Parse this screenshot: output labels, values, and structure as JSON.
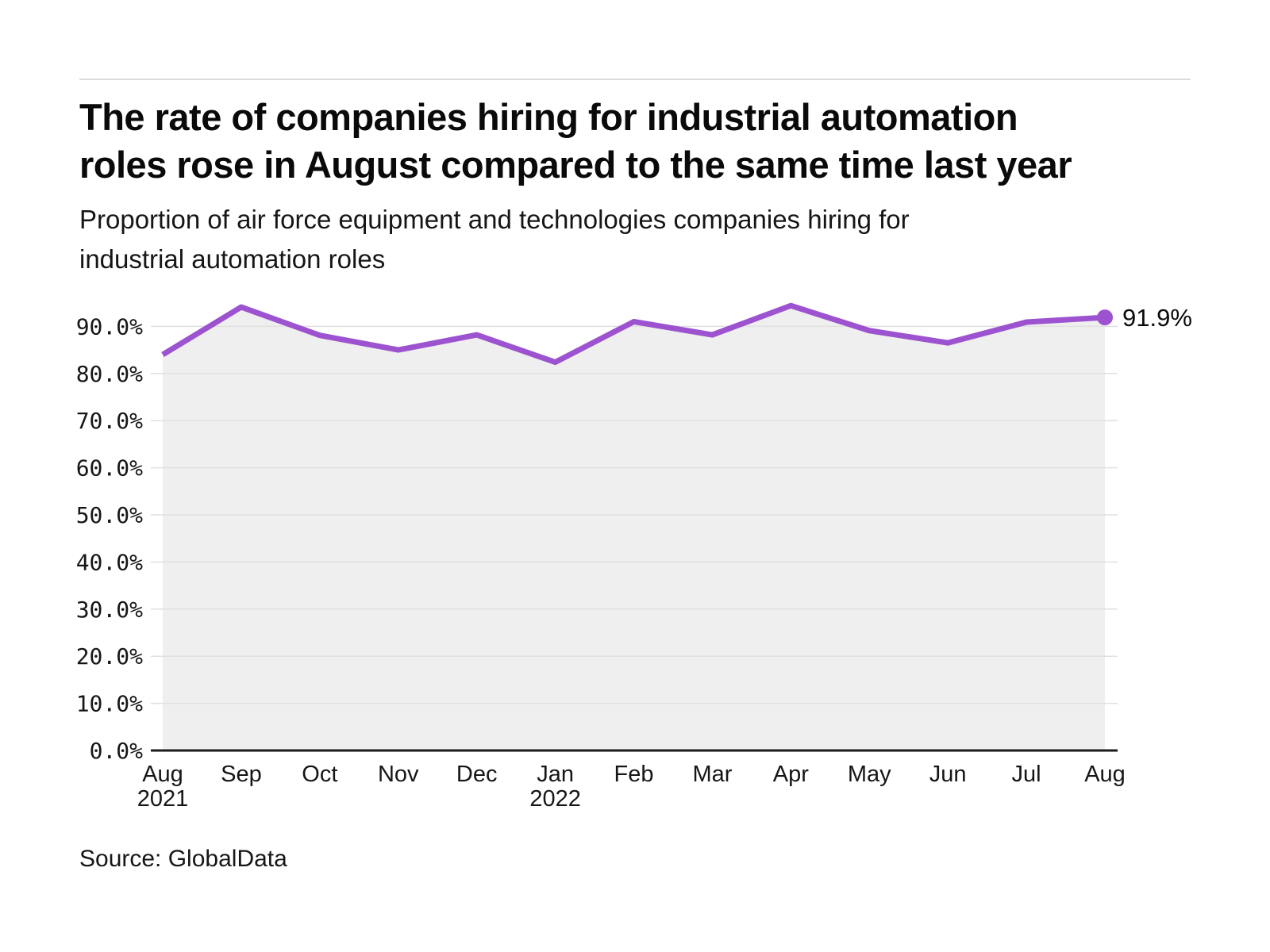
{
  "chart_data": {
    "type": "area",
    "title": "The rate of companies hiring for industrial automation roles rose in August compared to the same time last year",
    "title_lines": [
      "The rate of companies hiring for industrial automation",
      "roles rose in August compared to the same time last year"
    ],
    "subtitle": "Proportion of air force equipment and technologies companies hiring for industrial automation roles",
    "subtitle_lines": [
      "Proportion of air force equipment and technologies companies hiring for",
      "industrial automation roles"
    ],
    "source": "Source: GlobalData",
    "categories": [
      "Aug 2021",
      "Sep 2021",
      "Oct 2021",
      "Nov 2021",
      "Dec 2021",
      "Jan 2022",
      "Feb 2022",
      "Mar 2022",
      "Apr 2022",
      "May 2022",
      "Jun 2022",
      "Jul 2022",
      "Aug 2022"
    ],
    "x_tick_labels": [
      {
        "month": "Aug",
        "year": "2021"
      },
      {
        "month": "Sep"
      },
      {
        "month": "Oct"
      },
      {
        "month": "Nov"
      },
      {
        "month": "Dec"
      },
      {
        "month": "Jan",
        "year": "2022"
      },
      {
        "month": "Feb"
      },
      {
        "month": "Mar"
      },
      {
        "month": "Apr"
      },
      {
        "month": "May"
      },
      {
        "month": "Jun"
      },
      {
        "month": "Jul"
      },
      {
        "month": "Aug"
      }
    ],
    "values": [
      84.0,
      94.1,
      88.1,
      85.0,
      88.2,
      82.4,
      91.0,
      88.2,
      94.4,
      89.1,
      86.5,
      90.9,
      91.9
    ],
    "end_label": "91.9%",
    "ylim": [
      0,
      100
    ],
    "yticks": [
      0,
      10,
      20,
      30,
      40,
      50,
      60,
      70,
      80,
      90
    ],
    "ytick_labels": [
      "0.0%",
      "10.0%",
      "20.0%",
      "30.0%",
      "40.0%",
      "50.0%",
      "60.0%",
      "70.0%",
      "80.0%",
      "90.0%"
    ],
    "grid": true,
    "legend": "none",
    "colors": {
      "line": "#9d52cf",
      "fill": "#efefef",
      "grid": "#e0e0e0",
      "axis": "#1a1a1a",
      "text": "#161616",
      "rule": "#dcdcdc"
    }
  }
}
